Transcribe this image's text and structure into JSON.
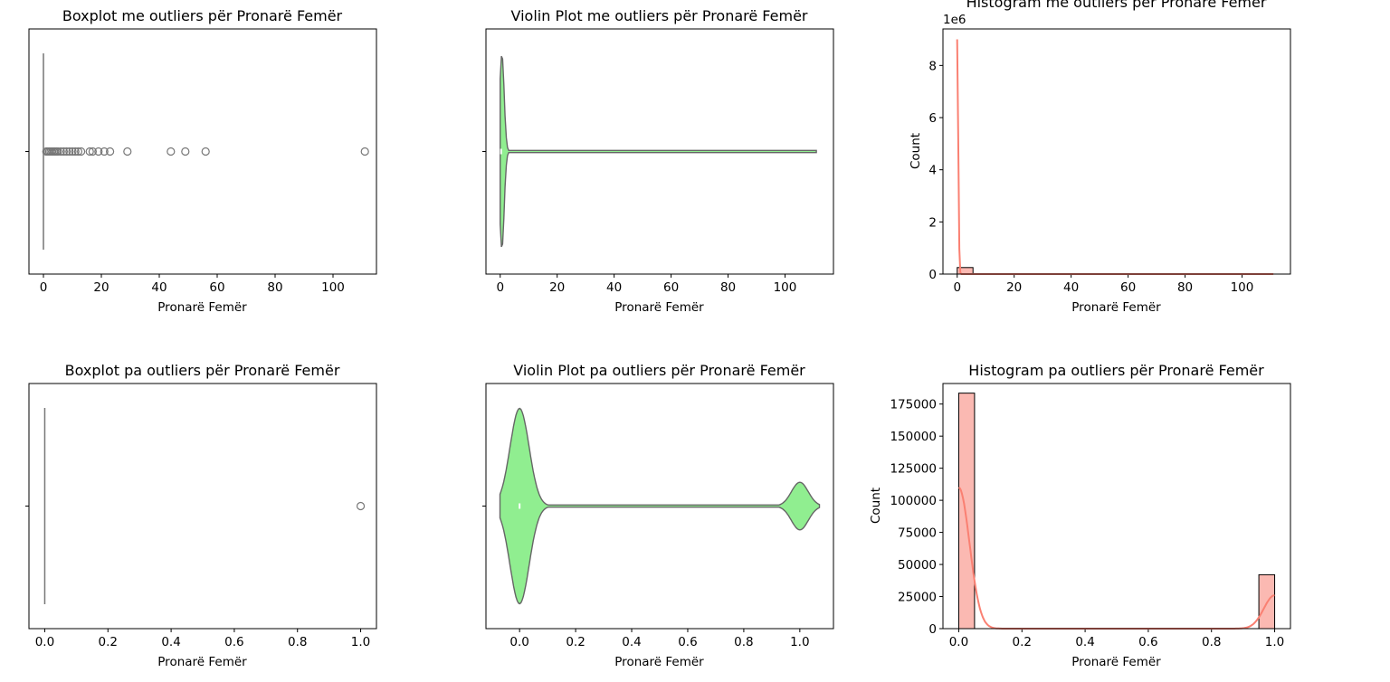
{
  "chart_data": [
    {
      "type": "boxplot",
      "title": "Boxplot me outliers për Pronarë Femër",
      "xlabel": "Pronarë Femër",
      "ylabel": "",
      "xlim": [
        -5,
        115
      ],
      "xticks": [
        "0",
        "20",
        "40",
        "60",
        "80",
        "100"
      ],
      "box": {
        "q1": 0,
        "median": 0,
        "q3": 0,
        "whisker_low": 0,
        "whisker_high": 0
      },
      "outliers": [
        1,
        1.5,
        2,
        2.5,
        3,
        3.5,
        4,
        4.5,
        5,
        6,
        7,
        8,
        9,
        10,
        11,
        12,
        13,
        16,
        17,
        19,
        21,
        23,
        29,
        44,
        49,
        56,
        111
      ],
      "color": "#777777"
    },
    {
      "type": "violin",
      "title": "Violin Plot me outliers për Pronarë Femër",
      "xlabel": "Pronarë Femër",
      "ylabel": "",
      "xlim": [
        -5,
        117
      ],
      "xticks": [
        "0",
        "20",
        "40",
        "60",
        "80",
        "100"
      ],
      "range": [
        0,
        111
      ],
      "color": "#90ee90"
    },
    {
      "type": "histogram",
      "title": "Histogram me outliers për Pronarë Femër",
      "xlabel": "Pronarë Femër",
      "ylabel": "Count",
      "offset_text": "1e6",
      "xlim": [
        -5,
        117
      ],
      "ylim": [
        0,
        9.4
      ],
      "xticks": [
        "0",
        "20",
        "40",
        "60",
        "80",
        "100"
      ],
      "yticks": [
        "0",
        "2",
        "4",
        "6",
        "8"
      ],
      "bin_width": 5.55,
      "counts": [
        0.25,
        0.003,
        0.0015,
        0.001,
        0.0008,
        0.0005,
        0.0004,
        0.0003,
        0.0002,
        0.0002,
        0.0001,
        0.0001,
        0.0001,
        0.0001,
        0.0001,
        0.0001,
        0.0001,
        0.0001,
        0.0001,
        0.0001
      ],
      "kde_peak": 9.0,
      "color": "#fa8072"
    },
    {
      "type": "boxplot",
      "title": "Boxplot pa outliers për Pronarë Femër",
      "xlabel": "Pronarë Femër",
      "ylabel": "",
      "xlim": [
        -0.05,
        1.05
      ],
      "xticks": [
        "0.0",
        "0.2",
        "0.4",
        "0.6",
        "0.8",
        "1.0"
      ],
      "box": {
        "q1": 0,
        "median": 0,
        "q3": 0,
        "whisker_low": 0,
        "whisker_high": 0
      },
      "outliers": [
        1.0
      ],
      "color": "#777777"
    },
    {
      "type": "violin",
      "title": "Violin Plot pa outliers për Pronarë Femër",
      "xlabel": "Pronarë Femër",
      "ylabel": "",
      "xlim": [
        -0.12,
        1.12
      ],
      "xticks": [
        "0.0",
        "0.2",
        "0.4",
        "0.6",
        "0.8",
        "1.0"
      ],
      "range": [
        -0.07,
        1.07
      ],
      "color": "#90ee90"
    },
    {
      "type": "histogram",
      "title": "Histogram pa outliers për Pronarë Femër",
      "xlabel": "Pronarë Femër",
      "ylabel": "Count",
      "offset_text": "",
      "xlim": [
        -0.05,
        1.05
      ],
      "ylim": [
        0,
        191000
      ],
      "xticks": [
        "0.0",
        "0.2",
        "0.4",
        "0.6",
        "0.8",
        "1.0"
      ],
      "yticks": [
        "0",
        "25000",
        "50000",
        "75000",
        "100000",
        "125000",
        "150000",
        "175000"
      ],
      "bin_width": 0.05,
      "counts": [
        183500,
        0,
        0,
        0,
        0,
        0,
        0,
        0,
        0,
        0,
        0,
        0,
        0,
        0,
        0,
        0,
        0,
        0,
        0,
        42000
      ],
      "kde_peak": 110000,
      "color": "#fa8072"
    }
  ]
}
